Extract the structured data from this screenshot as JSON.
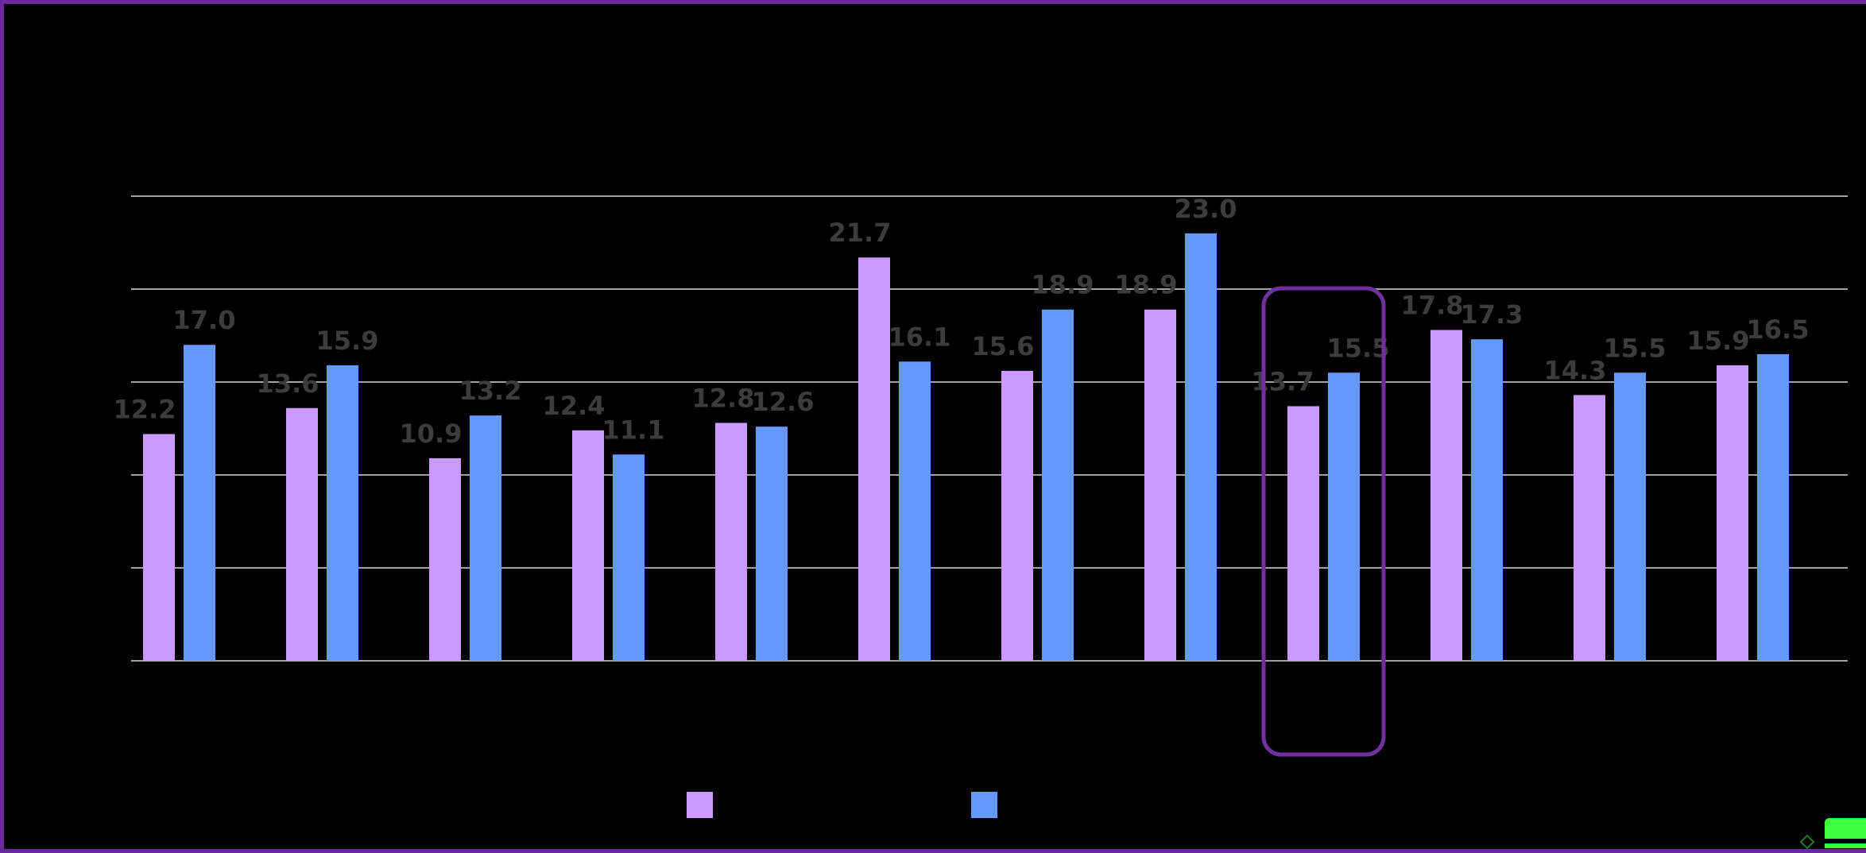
{
  "chart_data": {
    "type": "bar",
    "categories": [
      "",
      "",
      "",
      "",
      "",
      "",
      "",
      "",
      "",
      "",
      "",
      ""
    ],
    "series": [
      {
        "color": "#cc99ff",
        "values": [
          12.2,
          13.6,
          10.9,
          12.4,
          12.8,
          21.7,
          15.6,
          18.9,
          13.7,
          17.8,
          14.3,
          15.9
        ],
        "labels": [
          "12.2",
          "13.6",
          "10.9",
          "12.4",
          "12.8",
          "21.7",
          "15.6",
          "18.9",
          "13.7",
          "17.8",
          "14.3",
          "15.9"
        ]
      },
      {
        "color": "#6699ff",
        "values": [
          17.0,
          15.9,
          13.2,
          11.1,
          12.6,
          16.1,
          18.9,
          23.0,
          15.5,
          17.3,
          15.5,
          16.5
        ],
        "labels": [
          "17.0",
          "15.9",
          "13.2",
          "11.1",
          "12.6",
          "16.1",
          "18.9",
          "23.0",
          "15.5",
          "17.3",
          "15.5",
          "16.5"
        ]
      }
    ],
    "ylim": [
      0,
      25
    ],
    "grid": true,
    "gridline_step": 5,
    "legend_position": "bottom",
    "highlighted_category_index": 8,
    "title": "",
    "xlabel": "",
    "ylabel": ""
  },
  "colors": {
    "background": "#000000",
    "frame": "#6a2a9e",
    "highlight": "#7030a0",
    "grid": "#d9d9d9",
    "label": "#3c3c3c",
    "corner_widget": "#39ff3c"
  }
}
